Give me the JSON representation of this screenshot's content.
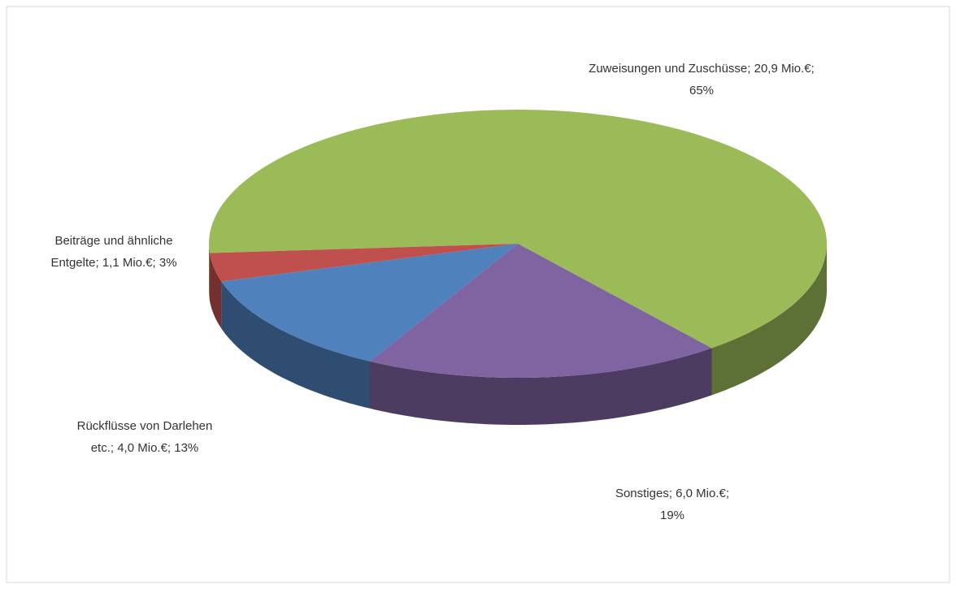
{
  "chart_data": {
    "type": "pie3d",
    "categories": [
      "Zuweisungen und Zuschüsse",
      "Sonstiges",
      "Rückflüsse von Darlehen etc.",
      "Beiträge und ähnliche Entgelte"
    ],
    "values": [
      20.9,
      6.0,
      4.0,
      1.1
    ],
    "value_labels": [
      [
        "Zuweisungen und Zuschüsse; 20,9 Mio.€;",
        "65%"
      ],
      [
        "Sonstiges; 6,0 Mio.€;",
        "19%"
      ],
      [
        "Rückflüsse von Darlehen",
        "etc.; 4,0 Mio.€; 13%"
      ],
      [
        "Beiträge und ähnliche",
        "Entgelte; 1,1 Mio.€; 3%"
      ]
    ],
    "colors": [
      "#9bbb59",
      "#8064a2",
      "#4f81bd",
      "#c0504d"
    ]
  }
}
